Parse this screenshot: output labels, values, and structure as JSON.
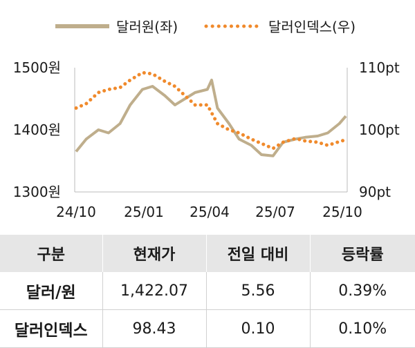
{
  "chart_data": {
    "type": "line",
    "legend": {
      "position": "top",
      "items": [
        {
          "label": "달러원(좌)",
          "color": "#bfae8c",
          "style": "solid"
        },
        {
          "label": "달러인덱스(우)",
          "color": "#f08a2c",
          "style": "dotted"
        }
      ]
    },
    "x_ticks": [
      "24/10",
      "25/01",
      "25/04",
      "25/07",
      "25/10"
    ],
    "left_axis": {
      "unit": "원",
      "ylim": [
        1300,
        1500
      ],
      "ticks": [
        "1500원",
        "1400원",
        "1300원"
      ]
    },
    "right_axis": {
      "unit": "pt",
      "ylim": [
        90,
        110
      ],
      "ticks": [
        "110pt",
        "100pt",
        "90pt"
      ]
    },
    "grid": false,
    "series": [
      {
        "name": "달러원(좌)",
        "axis": "left",
        "x": [
          "24/10/01",
          "24/10/15",
          "24/11/01",
          "24/11/15",
          "24/12/01",
          "24/12/15",
          "25/01/01",
          "25/01/15",
          "25/02/01",
          "25/02/15",
          "25/03/01",
          "25/03/15",
          "25/04/01",
          "25/04/07",
          "25/04/15",
          "25/05/01",
          "25/05/15",
          "25/06/01",
          "25/06/15",
          "25/07/01",
          "25/07/15",
          "25/08/01",
          "25/08/15",
          "25/09/01",
          "25/09/15",
          "25/10/01",
          "25/10/10"
        ],
        "values": [
          1365,
          1385,
          1400,
          1395,
          1410,
          1440,
          1465,
          1470,
          1455,
          1440,
          1450,
          1460,
          1465,
          1480,
          1435,
          1410,
          1385,
          1375,
          1360,
          1358,
          1380,
          1385,
          1388,
          1390,
          1395,
          1410,
          1422
        ]
      },
      {
        "name": "달러인덱스(우)",
        "axis": "right",
        "x": [
          "24/10/01",
          "24/10/15",
          "24/11/01",
          "24/11/15",
          "24/12/01",
          "24/12/15",
          "25/01/01",
          "25/01/15",
          "25/02/01",
          "25/02/15",
          "25/03/01",
          "25/03/15",
          "25/04/01",
          "25/04/15",
          "25/05/01",
          "25/05/15",
          "25/06/01",
          "25/06/15",
          "25/07/01",
          "25/07/15",
          "25/08/01",
          "25/08/15",
          "25/09/01",
          "25/09/15",
          "25/10/01",
          "25/10/10"
        ],
        "values": [
          103.5,
          104.2,
          106.0,
          106.5,
          106.8,
          108.0,
          109.2,
          109.0,
          107.8,
          107.0,
          105.5,
          104.0,
          104.0,
          101.0,
          100.0,
          99.5,
          98.5,
          97.8,
          97.0,
          98.0,
          98.6,
          98.2,
          98.0,
          97.5,
          98.1,
          98.4
        ]
      }
    ]
  },
  "table": {
    "headers": [
      "구분",
      "현재가",
      "전일 대비",
      "등락률"
    ],
    "rows": [
      [
        "달러/원",
        "1,422.07",
        "5.56",
        "0.39%"
      ],
      [
        "달러인덱스",
        "98.43",
        "0.10",
        "0.10%"
      ]
    ]
  }
}
